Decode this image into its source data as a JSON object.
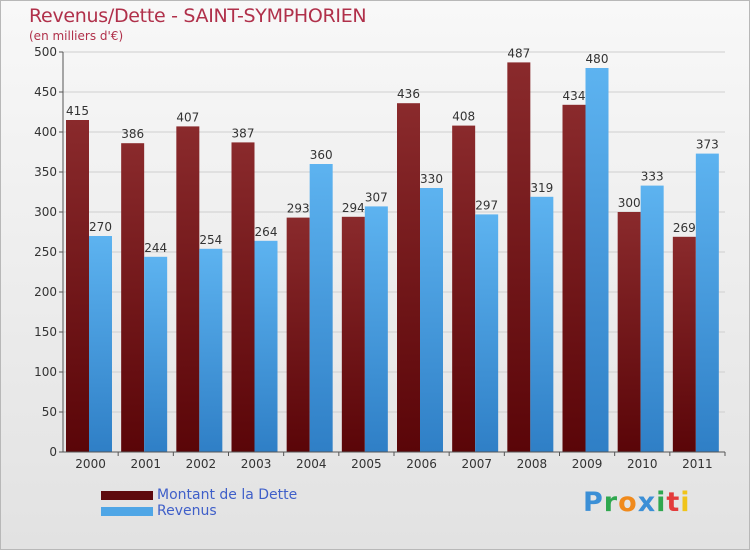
{
  "title": "Revenus/Dette - SAINT-SYMPHORIEN",
  "subtitle": "(en milliers d'€)",
  "colors": {
    "debt": "#7a1a1d",
    "revenue": "#4fa6e6",
    "axis": "#555555",
    "grid": "#cfcfcf"
  },
  "legend": [
    {
      "label": "Montant de la Dette",
      "color": "#6b0f12"
    },
    {
      "label": "Revenus",
      "color": "#4fa6e6"
    }
  ],
  "logo": {
    "text": "Proxiti",
    "letters": [
      {
        "ch": "P",
        "color": "#3b8fd6"
      },
      {
        "ch": "r",
        "color": "#2fa84f"
      },
      {
        "ch": "o",
        "color": "#f08a1c"
      },
      {
        "ch": "x",
        "color": "#3b8fd6"
      },
      {
        "ch": "i",
        "color": "#2fa84f"
      },
      {
        "ch": "t",
        "color": "#e33b3b"
      },
      {
        "ch": "i",
        "color": "#f0c419"
      }
    ]
  },
  "chart_data": {
    "type": "bar",
    "categories": [
      "2000",
      "2001",
      "2002",
      "2003",
      "2004",
      "2005",
      "2006",
      "2007",
      "2008",
      "2009",
      "2010",
      "2011"
    ],
    "series": [
      {
        "name": "Montant de la Dette",
        "values": [
          415,
          386,
          407,
          387,
          293,
          294,
          436,
          408,
          487,
          434,
          300,
          269
        ]
      },
      {
        "name": "Revenus",
        "values": [
          270,
          244,
          254,
          264,
          360,
          307,
          330,
          297,
          319,
          480,
          333,
          373
        ]
      }
    ],
    "title": "Revenus/Dette - SAINT-SYMPHORIEN",
    "subtitle": "(en milliers d'€)",
    "ylim": [
      0,
      500
    ],
    "yticks": [
      0,
      50,
      100,
      150,
      200,
      250,
      300,
      350,
      400,
      450,
      500
    ],
    "grid": true,
    "legend_position": "bottom-left"
  }
}
